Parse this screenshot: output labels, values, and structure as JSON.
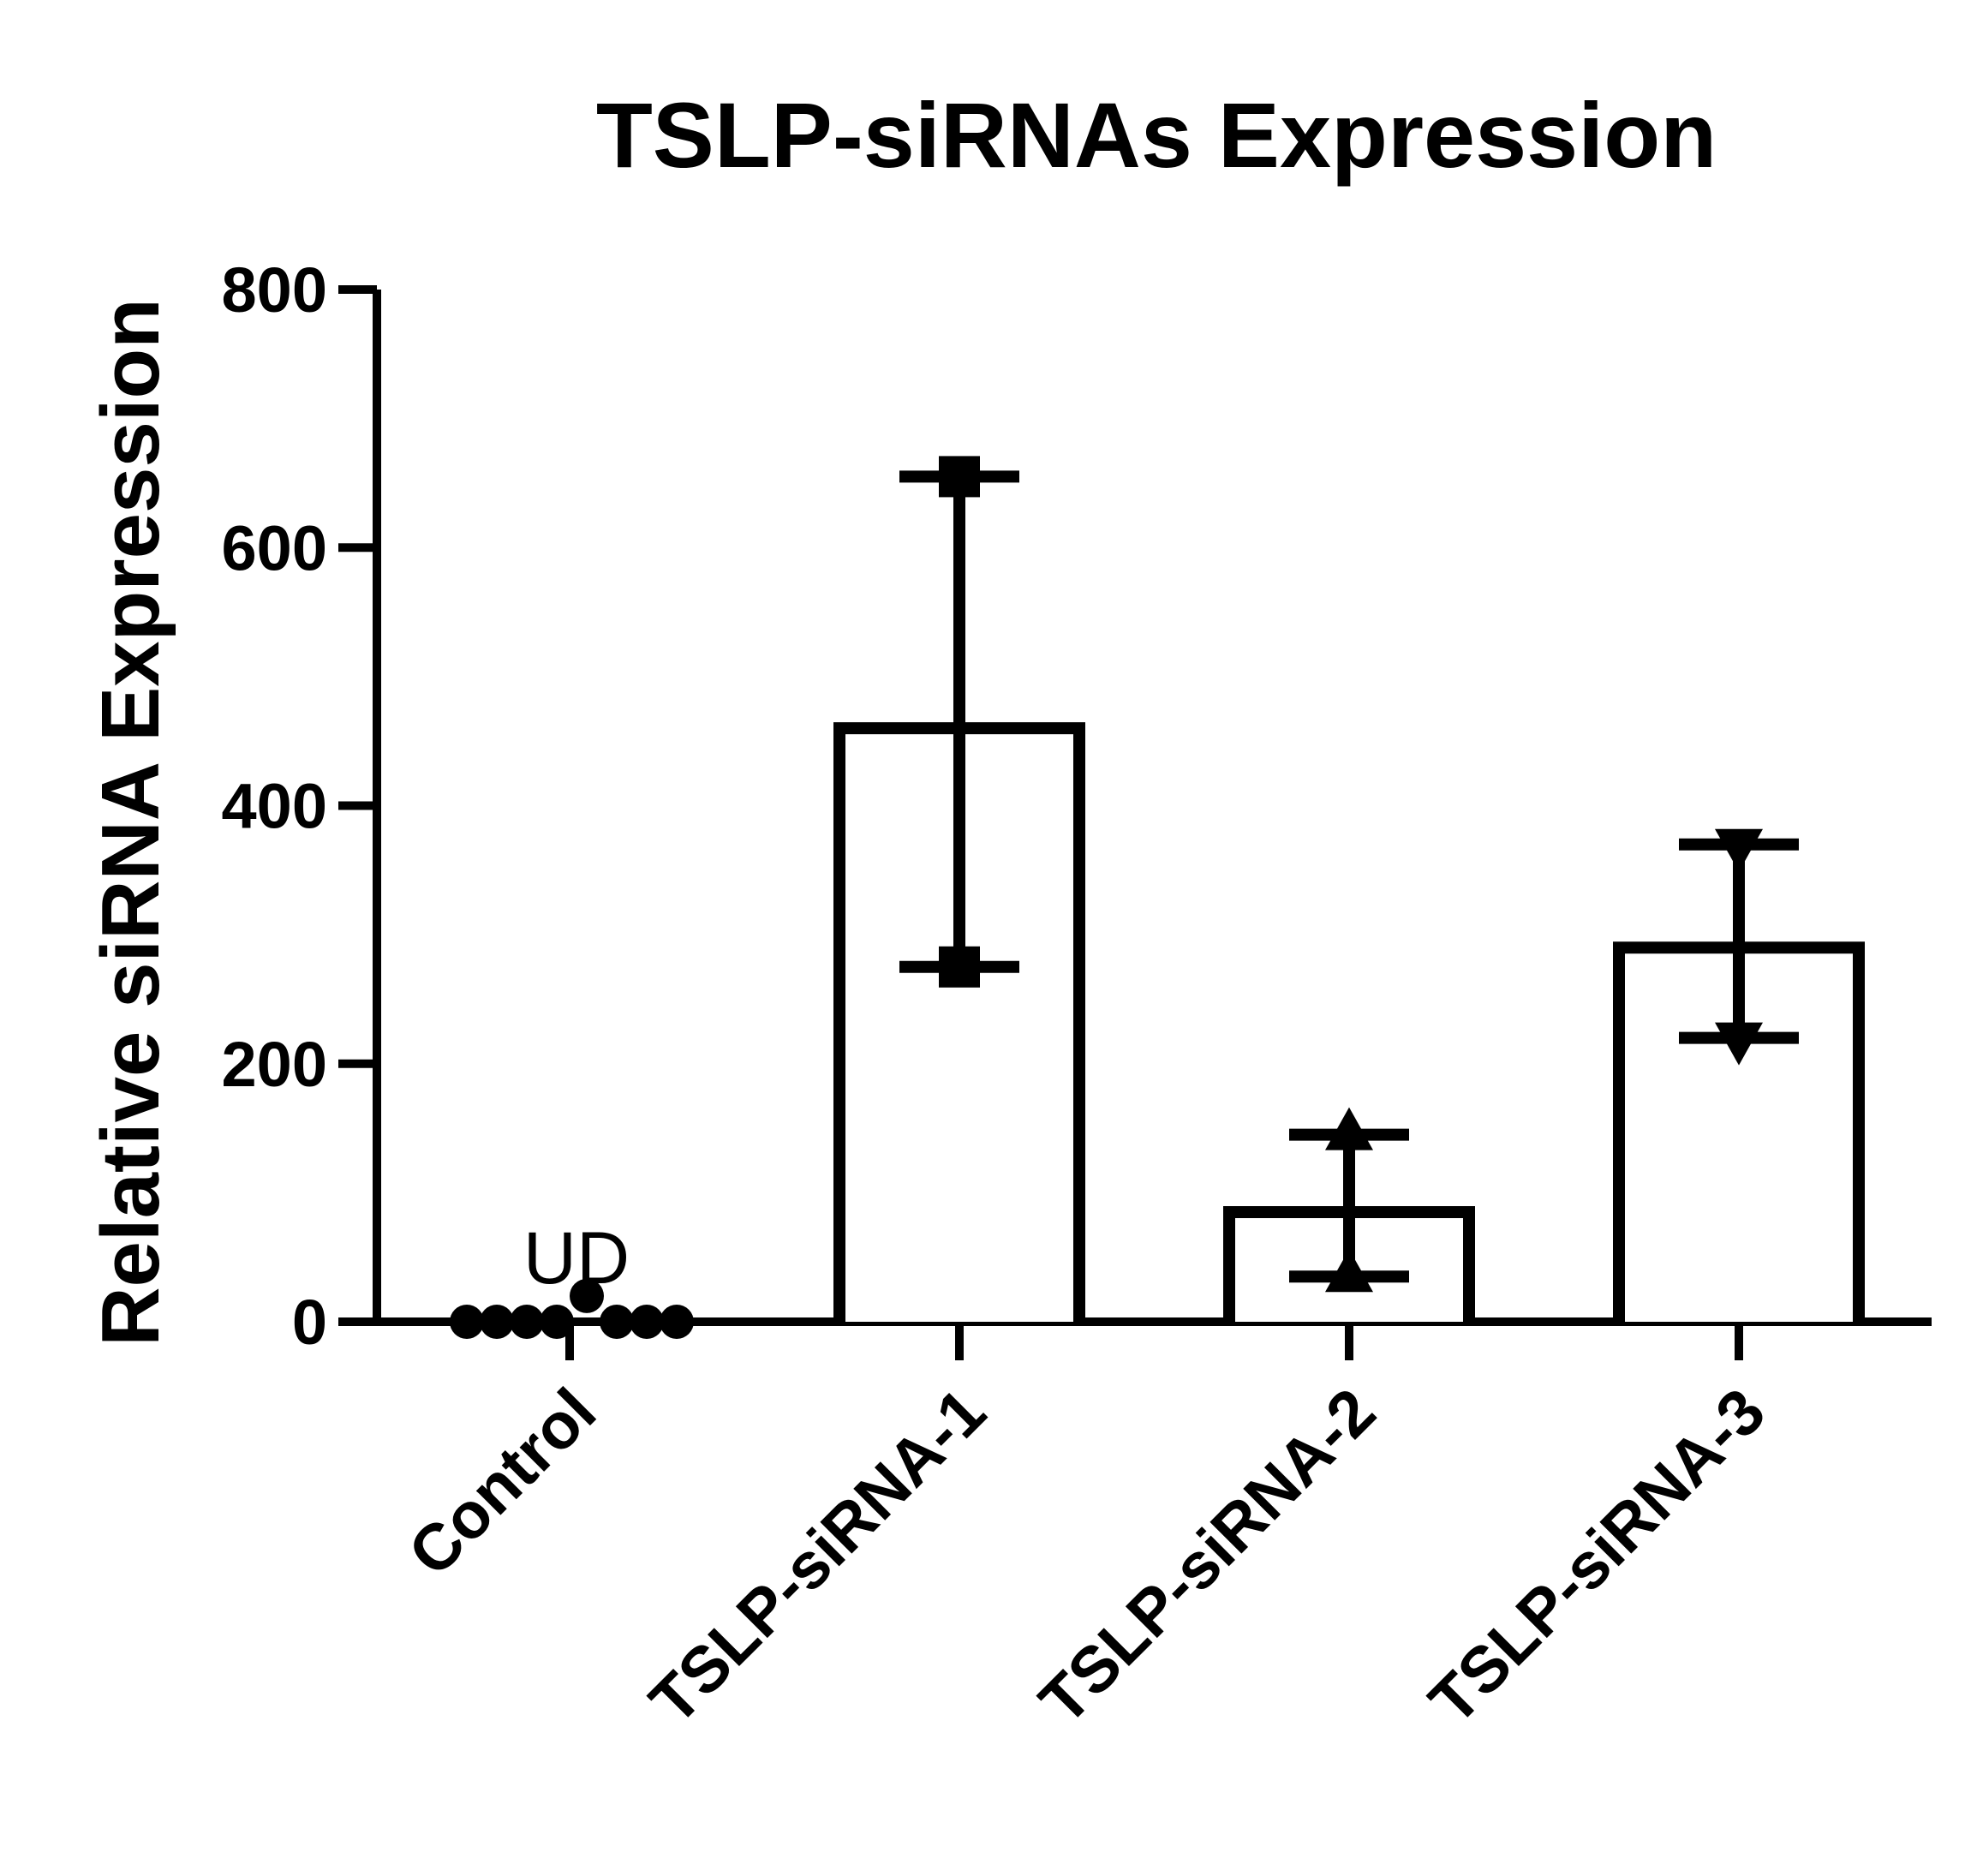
{
  "chart_data": {
    "type": "bar",
    "title": "TSLP-siRNAs Expression",
    "ylabel": "Relative siRNA Expression",
    "xlabel": "",
    "ylim": [
      0,
      800
    ],
    "yticks": [
      0,
      200,
      400,
      600,
      800
    ],
    "categories": [
      "Control",
      "TSLP-siRNA-1",
      "TSLP-siRNA-2",
      "TSLP-siRNA-3"
    ],
    "values": [
      0,
      460,
      85,
      290
    ],
    "error_upper": [
      null,
      655,
      145,
      370
    ],
    "error_lower": [
      null,
      275,
      35,
      220
    ],
    "point_markers": [
      "none",
      "square",
      "triangle-up",
      "triangle-down"
    ],
    "control_points": [
      0,
      0,
      0,
      0,
      20,
      0,
      0,
      0
    ],
    "annotations": [
      {
        "text": "UD",
        "category": "Control"
      }
    ],
    "grid": false,
    "legend": "none"
  }
}
